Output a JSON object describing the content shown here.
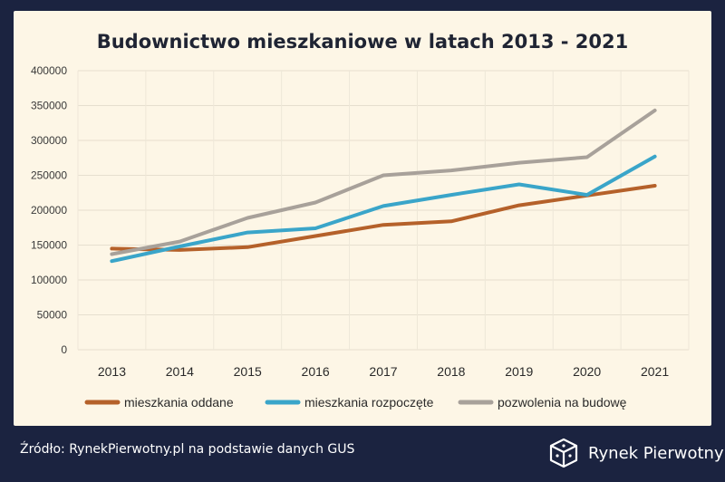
{
  "chart_data": {
    "type": "line",
    "title": "Budownictwo mieszkaniowe w latach 2013 - 2021",
    "categories": [
      "2013",
      "2014",
      "2015",
      "2016",
      "2017",
      "2018",
      "2019",
      "2020",
      "2021"
    ],
    "yticks": [
      "0",
      "50000",
      "100000",
      "150000",
      "200000",
      "250000",
      "300000",
      "350000",
      "400000"
    ],
    "ylim": [
      0,
      400000
    ],
    "grid": true,
    "legend_position": "bottom",
    "series": [
      {
        "name": "mieszkania oddane",
        "color": "#b5612a",
        "values": [
          145000,
          143000,
          147000,
          163000,
          179000,
          184000,
          207000,
          221000,
          235000
        ]
      },
      {
        "name": "mieszkania rozpoczęte",
        "color": "#3aa5c9",
        "values": [
          127000,
          148000,
          168000,
          174000,
          206000,
          222000,
          237000,
          222000,
          277000
        ]
      },
      {
        "name": "pozwolenia na budowę",
        "color": "#a8a19a",
        "values": [
          137000,
          155000,
          189000,
          211000,
          250000,
          257000,
          268000,
          276000,
          343000
        ]
      }
    ]
  },
  "footer": {
    "source": "Źródło: RynekPierwotny.pl na podstawie danych GUS",
    "brand": "Rynek Pierwotny"
  }
}
